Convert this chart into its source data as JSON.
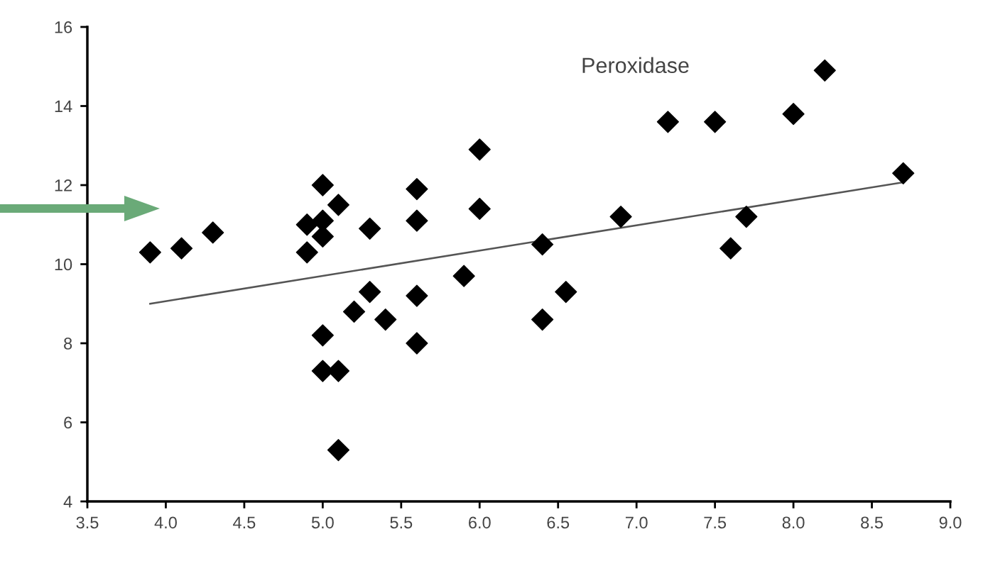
{
  "chart_data": {
    "type": "scatter",
    "annotations": [
      "Peroxidase"
    ],
    "xlim": [
      3.5,
      9.0
    ],
    "xticks": [
      3.5,
      {
        "value": 4,
        "label": "4.0"
      },
      4.5,
      {
        "value": 5,
        "label": "5.0"
      },
      5.5,
      {
        "value": 6,
        "label": "6.0"
      },
      6.5,
      {
        "value": 7,
        "label": "7.0"
      },
      7.5,
      {
        "value": 8,
        "label": "8.0"
      },
      8.5,
      {
        "value": 9,
        "label": "9.0"
      }
    ],
    "ylim": [
      4,
      16
    ],
    "yticks": [
      4,
      6,
      8,
      10,
      12,
      14,
      16
    ],
    "grid": false,
    "legend": false,
    "series": [
      {
        "color": "#000000",
        "marker": "diamond",
        "x": [
          3.9,
          4.1,
          4.3,
          4.9,
          4.9,
          5.0,
          5.0,
          5.0,
          5.0,
          5.0,
          5.1,
          5.1,
          5.1,
          5.2,
          5.3,
          5.3,
          5.4,
          5.6,
          5.6,
          5.6,
          5.6,
          5.9,
          6.0,
          6.0,
          6.4,
          6.4,
          6.55,
          6.9,
          7.2,
          7.5,
          7.6,
          7.7,
          8.0,
          8.2,
          8.7
        ],
        "values": [
          10.3,
          10.4,
          10.8,
          11.0,
          10.3,
          12.0,
          11.1,
          10.7,
          8.2,
          7.3,
          7.3,
          5.3,
          11.5,
          8.8,
          10.9,
          9.3,
          8.6,
          11.9,
          11.1,
          9.2,
          8.0,
          9.7,
          12.9,
          11.4,
          10.5,
          8.6,
          9.3,
          11.2,
          13.6,
          13.6,
          10.4,
          11.2,
          13.8,
          14.9,
          12.3
        ]
      },
      {
        "type": "line",
        "color": "#555555",
        "marker": "none",
        "line_style": "solid",
        "x": [
          3.9,
          8.7
        ],
        "values": [
          9.0,
          12.07
        ]
      }
    ]
  }
}
